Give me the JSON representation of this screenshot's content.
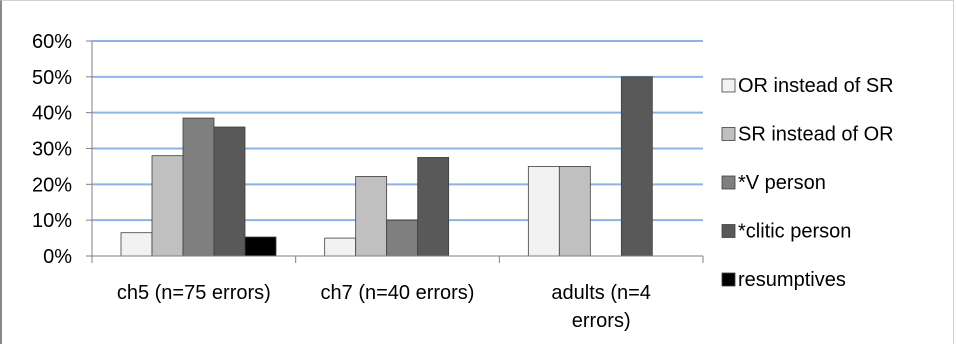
{
  "chart_data": {
    "type": "bar",
    "title": "",
    "xlabel": "",
    "ylabel": "",
    "ylim": [
      0,
      0.6
    ],
    "yticks": [
      "0%",
      "10%",
      "20%",
      "30%",
      "40%",
      "50%",
      "60%"
    ],
    "grid": true,
    "legend_position": "right",
    "categories": [
      [
        "ch5  (n=75 errors)"
      ],
      [
        "ch7  (n=40 errors)"
      ],
      [
        "adults  (n=4",
        "errors)"
      ]
    ],
    "series": [
      {
        "name": "OR instead of SR",
        "color": "#f2f2f2",
        "values": [
          0.065,
          0.05,
          0.25
        ]
      },
      {
        "name": "SR instead of OR",
        "color": "#c0c0c0",
        "values": [
          0.28,
          0.222,
          0.25
        ]
      },
      {
        "name": "*V person",
        "color": "#7f7f7f",
        "values": [
          0.385,
          0.1,
          0
        ]
      },
      {
        "name": "*clitic person",
        "color": "#595959",
        "values": [
          0.36,
          0.275,
          0.5
        ]
      },
      {
        "name": "resumptives",
        "color": "#000000",
        "values": [
          0.053,
          0,
          0
        ]
      }
    ],
    "gridline_color": "#8eb4e3"
  }
}
